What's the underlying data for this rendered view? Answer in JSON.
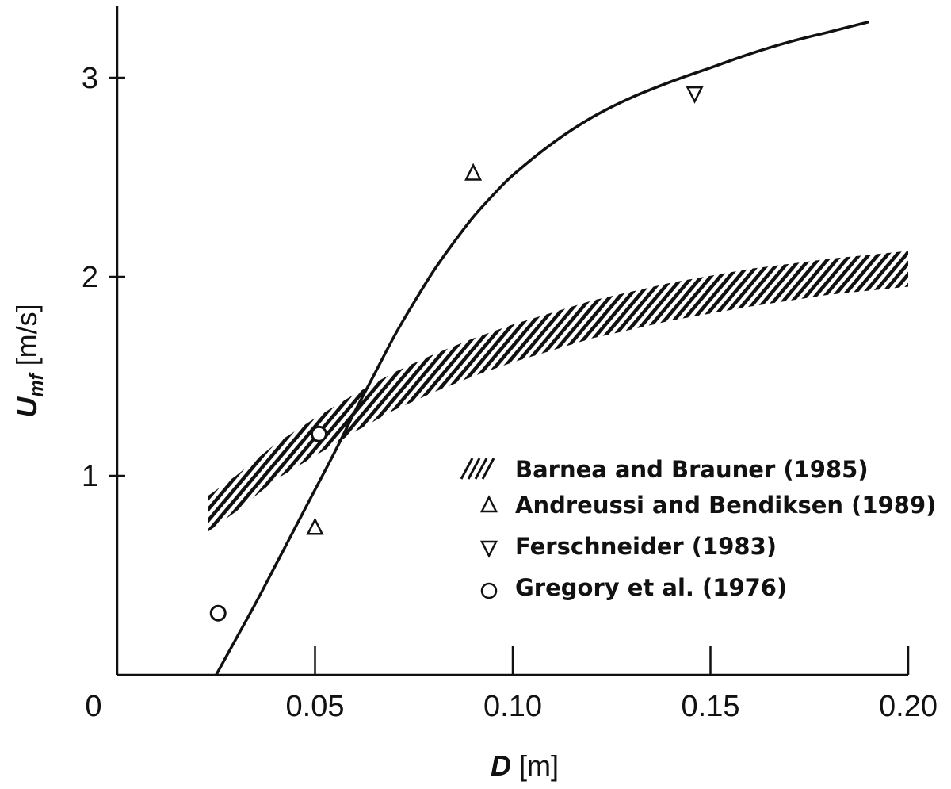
{
  "chart_data": {
    "type": "line",
    "xlabel": {
      "var": "D",
      "unit": " [m]"
    },
    "ylabel": {
      "var": "U",
      "sub": "mf",
      "unit": " [m/s]"
    },
    "xlim": [
      0,
      0.2
    ],
    "ylim": [
      0,
      3.3
    ],
    "x_ticks": [
      {
        "value": 0,
        "label": "0"
      },
      {
        "value": 0.05,
        "label": "0.05"
      },
      {
        "value": 0.1,
        "label": "0.10"
      },
      {
        "value": 0.15,
        "label": "0.15"
      },
      {
        "value": 0.2,
        "label": "0.20"
      }
    ],
    "y_ticks": [
      {
        "value": 1,
        "label": "1"
      },
      {
        "value": 2,
        "label": "2"
      },
      {
        "value": 3,
        "label": "3"
      }
    ],
    "curve": {
      "x": [
        0.025,
        0.03,
        0.035,
        0.04,
        0.045,
        0.05,
        0.055,
        0.06,
        0.065,
        0.07,
        0.075,
        0.08,
        0.085,
        0.09,
        0.095,
        0.1,
        0.11,
        0.12,
        0.13,
        0.14,
        0.15,
        0.16,
        0.17,
        0.18,
        0.19
      ],
      "y": [
        0.0,
        0.18,
        0.36,
        0.55,
        0.74,
        0.93,
        1.12,
        1.32,
        1.51,
        1.7,
        1.87,
        2.03,
        2.17,
        2.3,
        2.41,
        2.51,
        2.67,
        2.8,
        2.9,
        2.98,
        3.05,
        3.12,
        3.18,
        3.23,
        3.28
      ]
    },
    "band": {
      "x": [
        0.023,
        0.03,
        0.04,
        0.05,
        0.06,
        0.07,
        0.08,
        0.09,
        0.1,
        0.12,
        0.14,
        0.16,
        0.18,
        0.2
      ],
      "lower": [
        0.72,
        0.82,
        0.98,
        1.1,
        1.22,
        1.33,
        1.42,
        1.5,
        1.57,
        1.69,
        1.78,
        1.85,
        1.91,
        1.95
      ],
      "upper": [
        0.9,
        1.0,
        1.16,
        1.29,
        1.41,
        1.52,
        1.61,
        1.69,
        1.76,
        1.88,
        1.97,
        2.04,
        2.09,
        2.13
      ]
    },
    "points": [
      {
        "series": "Andreussi and Bendiksen (1989)",
        "marker": "triangle-up",
        "x": 0.05,
        "y": 0.74
      },
      {
        "series": "Andreussi and Bendiksen (1989)",
        "marker": "triangle-up",
        "x": 0.09,
        "y": 2.52
      },
      {
        "series": "Ferschneider (1983)",
        "marker": "triangle-down",
        "x": 0.146,
        "y": 2.92
      },
      {
        "series": "Gregory et al. (1976)",
        "marker": "circle",
        "x": 0.0255,
        "y": 0.31
      },
      {
        "series": "Gregory et al. (1976)",
        "marker": "circle",
        "x": 0.051,
        "y": 1.21
      }
    ],
    "legend": {
      "placement": "bottom-right",
      "entries": [
        {
          "marker": "hatch",
          "label": "Barnea and Brauner (1985)"
        },
        {
          "marker": "triangle-up",
          "label": "Andreussi and Bendiksen (1989)"
        },
        {
          "marker": "triangle-down",
          "label": "Ferschneider (1983)"
        },
        {
          "marker": "circle",
          "label": "Gregory et al. (1976)"
        }
      ]
    },
    "colors": {
      "ink": "#111111",
      "background": "#ffffff"
    }
  }
}
